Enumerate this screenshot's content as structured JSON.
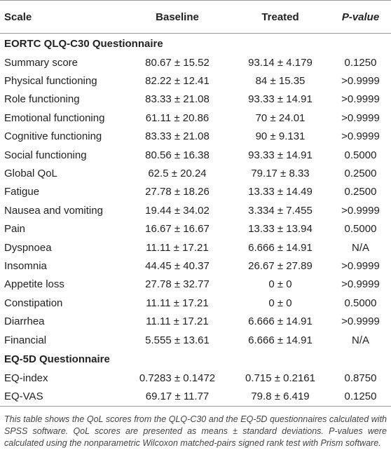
{
  "table": {
    "header": [
      "Scale",
      "Baseline",
      "Treated",
      "P-value"
    ],
    "sections": [
      {
        "title": "EORTC QLQ-C30 Questionnaire",
        "rows": [
          [
            "Summary score",
            "80.67 ± 15.52",
            "93.14 ± 4.179",
            "0.1250"
          ],
          [
            "Physical functioning",
            "82.22 ± 12.41",
            "84 ± 15.35",
            ">0.9999"
          ],
          [
            "Role functioning",
            "83.33 ± 21.08",
            "93.33 ± 14.91",
            ">0.9999"
          ],
          [
            "Emotional functioning",
            "61.11 ± 20.86",
            "70 ± 24.01",
            ">0.9999"
          ],
          [
            "Cognitive functioning",
            "83.33 ± 21.08",
            "90 ± 9.131",
            ">0.9999"
          ],
          [
            "Social functioning",
            "80.56 ± 16.38",
            "93.33 ± 14.91",
            "0.5000"
          ],
          [
            "Global QoL",
            "62.5 ± 20.24",
            "79.17 ± 8.33",
            "0.2500"
          ],
          [
            "Fatigue",
            "27.78 ± 18.26",
            "13.33 ± 14.49",
            "0.2500"
          ],
          [
            "Nausea and vomiting",
            "19.44 ± 34.02",
            "3.334 ± 7.455",
            ">0.9999"
          ],
          [
            "Pain",
            "16.67 ± 16.67",
            "13.33 ± 13.94",
            "0.5000"
          ],
          [
            "Dyspnoea",
            "11.11 ± 17.21",
            "6.666 ± 14.91",
            "N/A"
          ],
          [
            "Insomnia",
            "44.45 ± 40.37",
            "26.67 ± 27.89",
            ">0.9999"
          ],
          [
            "Appetite loss",
            "27.78 ± 32.77",
            "0 ± 0",
            ">0.9999"
          ],
          [
            "Constipation",
            "11.11 ± 17.21",
            "0 ± 0",
            "0.5000"
          ],
          [
            "Diarrhea",
            "11.11 ± 17.21",
            "6.666 ± 14.91",
            ">0.9999"
          ],
          [
            "Financial",
            "5.555 ± 13.61",
            "6.666 ± 14.91",
            "N/A"
          ]
        ]
      },
      {
        "title": "EQ-5D Questionnaire",
        "rows": [
          [
            "EQ-index",
            "0.7283 ± 0.1472",
            "0.715 ± 0.2161",
            "0.8750"
          ],
          [
            "EQ-VAS",
            "69.17 ± 11.77",
            "79.8 ± 6.419",
            "0.1250"
          ]
        ]
      }
    ]
  },
  "caption": "This table shows the QoL scores from the QLQ-C30 and the EQ-5D questionnaires calculated with SPSS software. QoL scores are presented as means ± standard deviations. P-values were calculated using the nonparametric Wilcoxon matched-pairs signed rank test with Prism software."
}
